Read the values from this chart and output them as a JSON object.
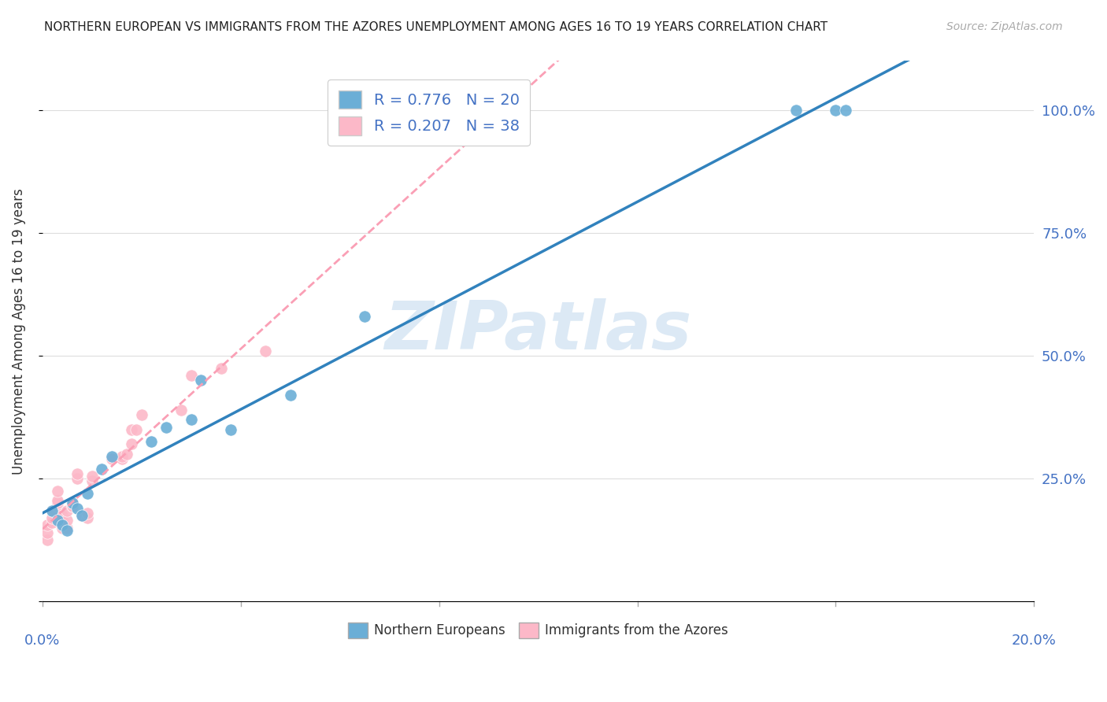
{
  "title": "NORTHERN EUROPEAN VS IMMIGRANTS FROM THE AZORES UNEMPLOYMENT AMONG AGES 16 TO 19 YEARS CORRELATION CHART",
  "source": "Source: ZipAtlas.com",
  "ylabel": "Unemployment Among Ages 16 to 19 years",
  "legend_label1": "Northern Europeans",
  "legend_label2": "Immigrants from the Azores",
  "R1": 0.776,
  "N1": 20,
  "R2": 0.207,
  "N2": 38,
  "blue_color": "#6baed6",
  "pink_color": "#fcb8c8",
  "blue_line_color": "#3182bd",
  "pink_line_color": "#fa9fb5",
  "watermark": "ZIPatlas",
  "blue_points_x": [
    0.002,
    0.003,
    0.004,
    0.005,
    0.006,
    0.007,
    0.008,
    0.009,
    0.012,
    0.014,
    0.022,
    0.025,
    0.03,
    0.032,
    0.038,
    0.05,
    0.065,
    0.152,
    0.16,
    0.162
  ],
  "blue_points_y": [
    0.185,
    0.165,
    0.155,
    0.145,
    0.2,
    0.19,
    0.175,
    0.22,
    0.27,
    0.295,
    0.325,
    0.355,
    0.37,
    0.45,
    0.35,
    0.42,
    0.58,
    1.0,
    1.0,
    1.0
  ],
  "pink_points_x": [
    0.001,
    0.001,
    0.001,
    0.002,
    0.002,
    0.002,
    0.003,
    0.003,
    0.003,
    0.003,
    0.004,
    0.004,
    0.004,
    0.005,
    0.005,
    0.005,
    0.006,
    0.006,
    0.006,
    0.007,
    0.007,
    0.008,
    0.009,
    0.009,
    0.01,
    0.01,
    0.014,
    0.016,
    0.016,
    0.017,
    0.018,
    0.018,
    0.019,
    0.02,
    0.028,
    0.03,
    0.036,
    0.045
  ],
  "pink_points_y": [
    0.125,
    0.14,
    0.155,
    0.16,
    0.17,
    0.185,
    0.195,
    0.2,
    0.205,
    0.225,
    0.15,
    0.165,
    0.175,
    0.15,
    0.165,
    0.185,
    0.195,
    0.195,
    0.2,
    0.25,
    0.26,
    0.175,
    0.17,
    0.18,
    0.245,
    0.255,
    0.29,
    0.29,
    0.295,
    0.3,
    0.32,
    0.35,
    0.35,
    0.38,
    0.39,
    0.46,
    0.475,
    0.51
  ],
  "xlim": [
    0.0,
    0.2
  ],
  "ylim": [
    0.0,
    1.1
  ],
  "yticks": [
    0.0,
    0.25,
    0.5,
    0.75,
    1.0
  ],
  "ytick_labels": [
    "",
    "25.0%",
    "50.0%",
    "75.0%",
    "100.0%"
  ],
  "background_color": "#ffffff",
  "grid_color": "#dddddd",
  "title_color": "#222222",
  "axis_label_color": "#4472c4",
  "watermark_color": "#dce9f5"
}
